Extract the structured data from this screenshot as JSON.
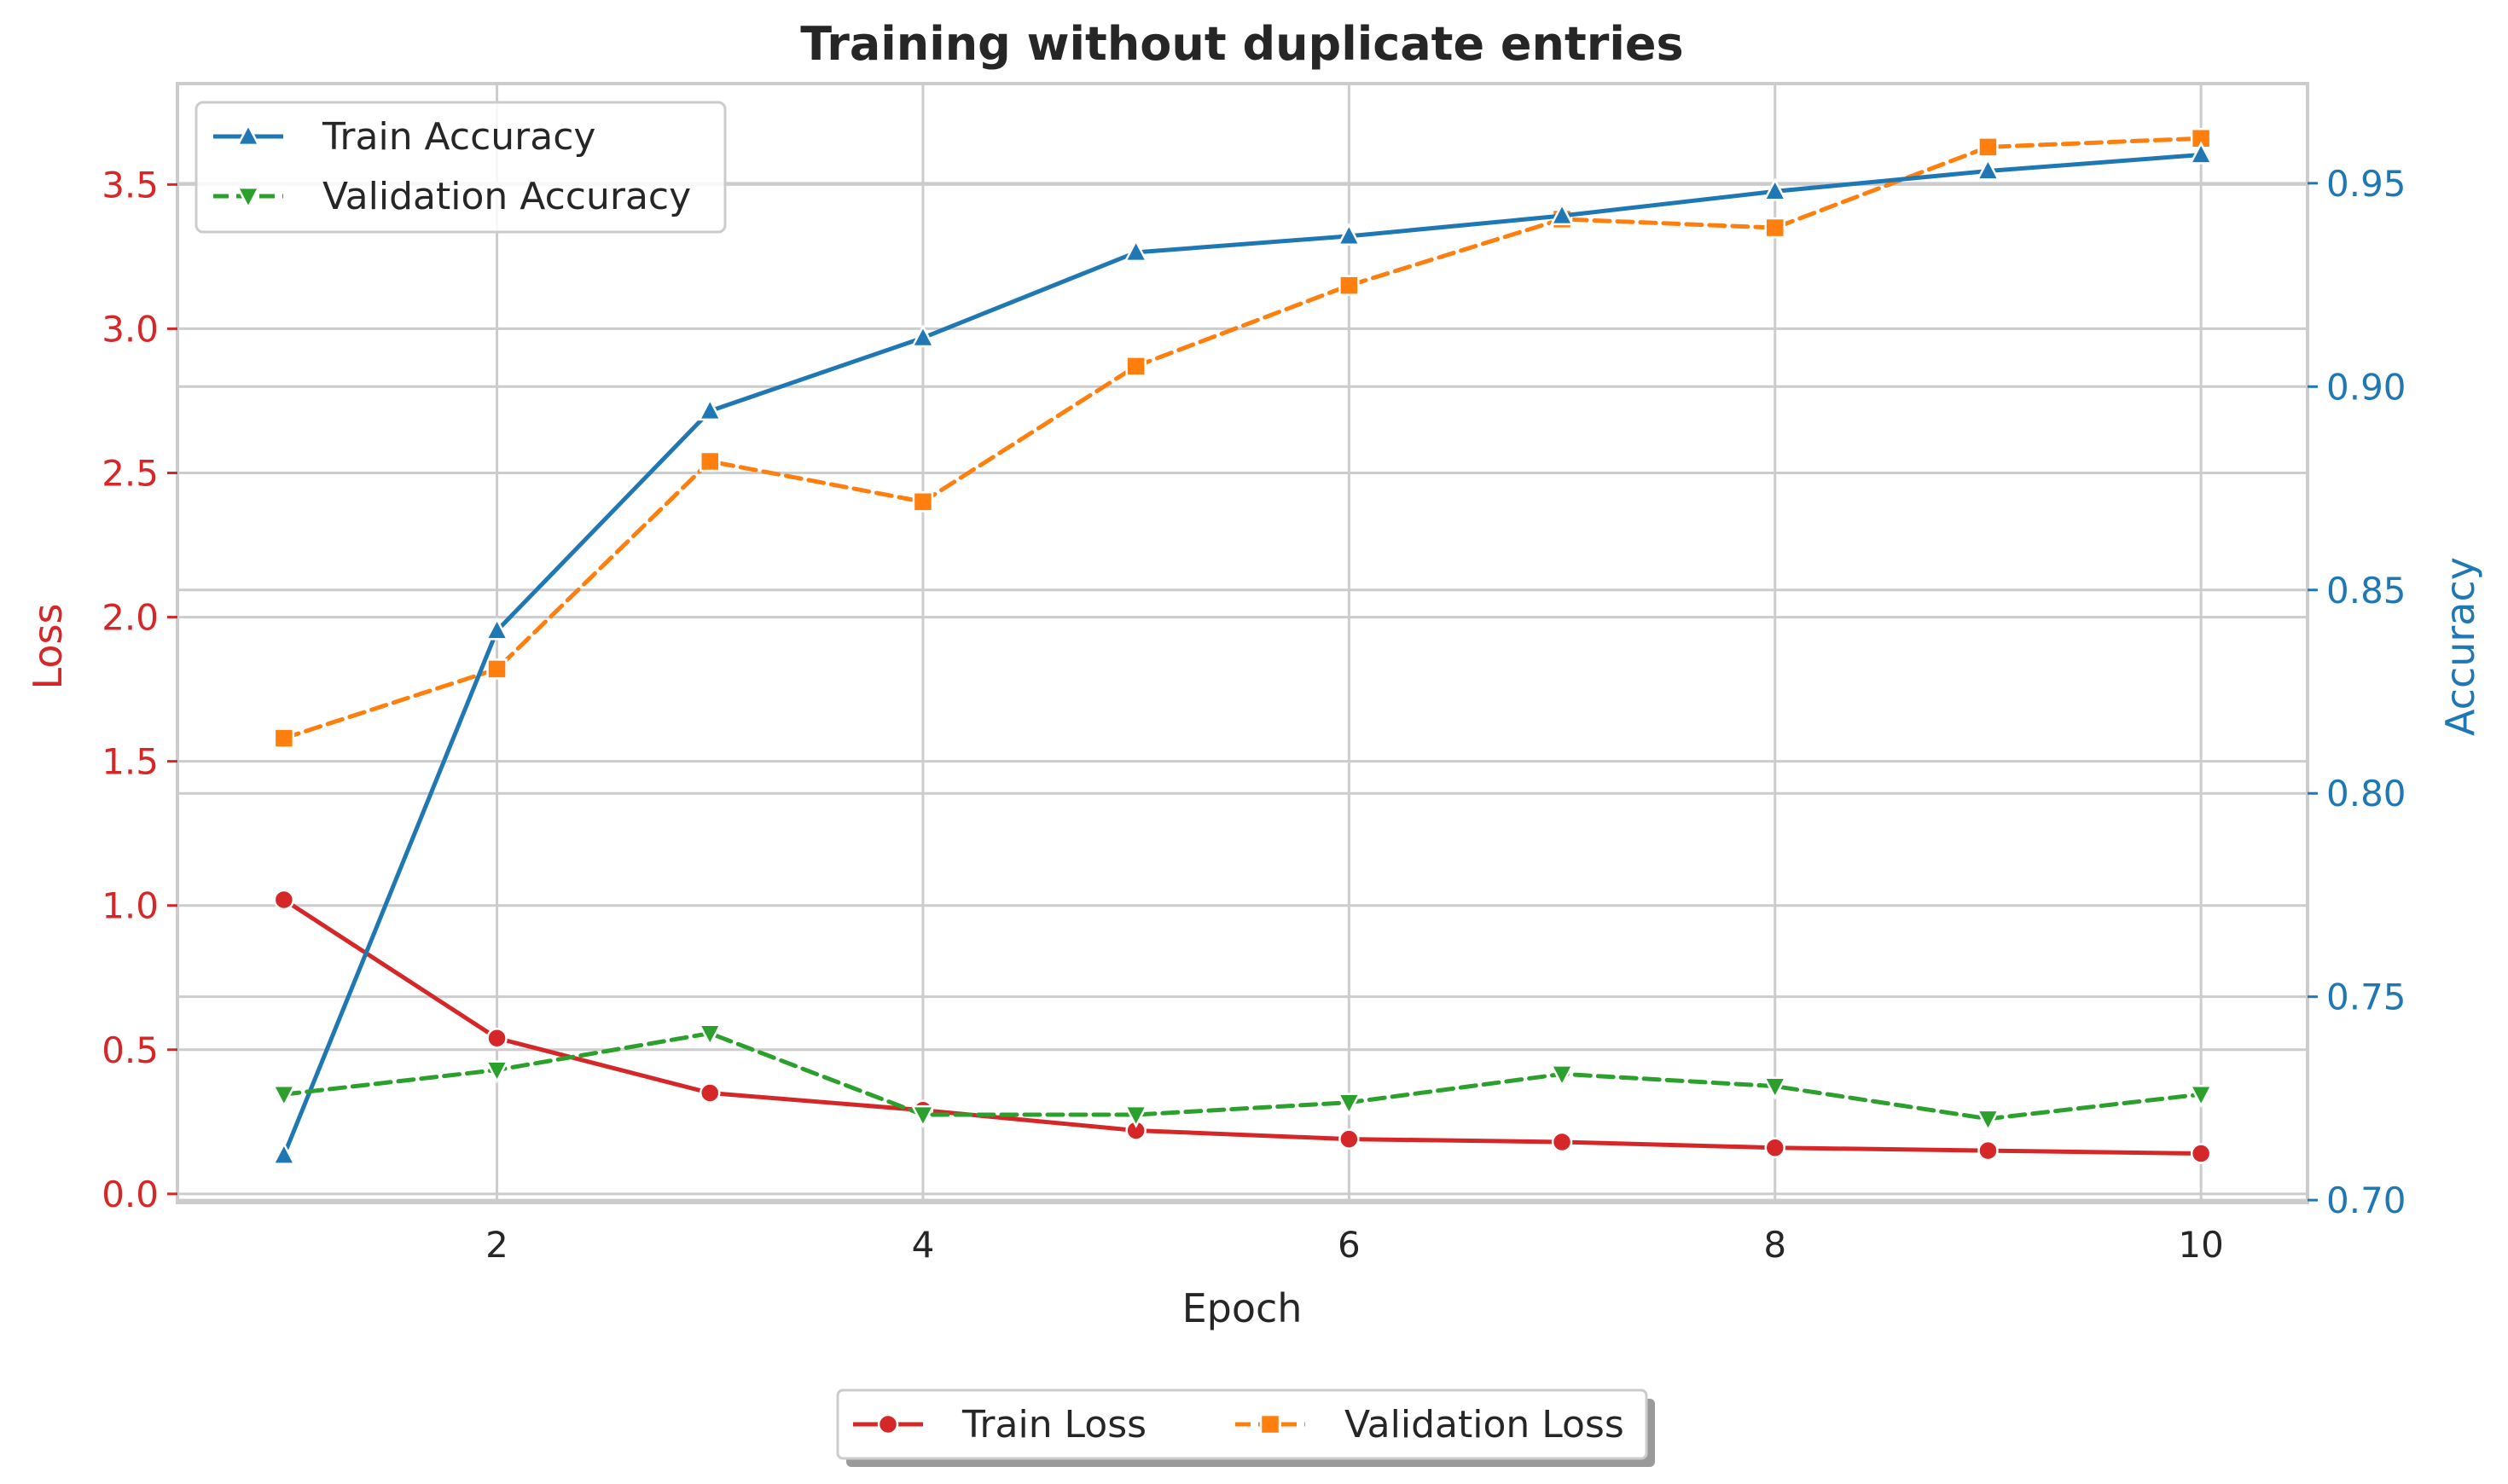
{
  "chart_data": {
    "type": "line",
    "title": "Training without duplicate entries",
    "xlabel": "Epoch",
    "ylabel_left": "Loss",
    "ylabel_right": "Accuracy",
    "xlim": [
      0.5,
      10.5
    ],
    "ylim_left": [
      -0.03,
      3.85
    ],
    "ylim_right": [
      0.6994,
      0.9745
    ],
    "xticks": [
      2,
      4,
      6,
      8,
      10
    ],
    "yticks_left": [
      "0.0",
      "0.5",
      "1.0",
      "1.5",
      "2.0",
      "2.5",
      "3.0",
      "3.5"
    ],
    "yticks_right": [
      "0.70",
      "0.75",
      "0.80",
      "0.85",
      "0.90",
      "0.95"
    ],
    "grid": true,
    "x": [
      1,
      2,
      3,
      4,
      5,
      6,
      7,
      8,
      9,
      10
    ],
    "series": [
      {
        "name": "Train Loss",
        "axis": "left",
        "color": "#d62728",
        "dash": "solid",
        "marker": "circle",
        "values": [
          1.02,
          0.54,
          0.35,
          0.29,
          0.22,
          0.19,
          0.18,
          0.16,
          0.15,
          0.14
        ]
      },
      {
        "name": "Validation Loss",
        "axis": "left",
        "color": "#ff7f0e",
        "dash": "dashed",
        "marker": "square",
        "values": [
          1.58,
          1.82,
          2.54,
          2.4,
          2.87,
          3.15,
          3.38,
          3.35,
          3.63,
          3.66
        ]
      },
      {
        "name": "Train Accuracy",
        "axis": "right",
        "color": "#1f77b4",
        "dash": "solid",
        "marker": "triangle-up",
        "values": [
          0.711,
          0.84,
          0.894,
          0.912,
          0.933,
          0.937,
          0.942,
          0.948,
          0.953,
          0.957
        ]
      },
      {
        "name": "Validation Accuracy",
        "axis": "right",
        "color": "#2ca02c",
        "dash": "dashed",
        "marker": "triangle-down",
        "values": [
          0.726,
          0.732,
          0.741,
          0.721,
          0.721,
          0.724,
          0.731,
          0.728,
          0.72,
          0.726
        ]
      }
    ],
    "legend_top": [
      "Train Accuracy",
      "Validation Accuracy"
    ],
    "legend_bottom": [
      "Train Loss",
      "Validation Loss"
    ],
    "legend_placement": [
      "upper-left",
      "below-plot"
    ],
    "colors": {
      "left_axis": "#d62728",
      "right_axis": "#1f77b4",
      "grid": "#cccccc",
      "text": "#262626"
    }
  }
}
